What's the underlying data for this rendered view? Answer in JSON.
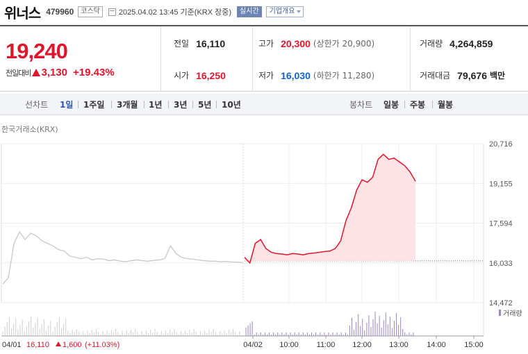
{
  "header": {
    "name": "위너스",
    "code": "479960",
    "market": "코스닥",
    "datetime": "2025.04.02 13:45  기준(KRX 장중)",
    "realtime": "실시간",
    "corp_info": "기업개요"
  },
  "quote": {
    "price": "19,240",
    "change_label": "전일대비",
    "change": "3,130",
    "change_pct": "+19.43%",
    "prev_label": "전일",
    "prev": "16,110",
    "open_label": "시가",
    "open": "16,250",
    "high_label": "고가",
    "high": "20,300",
    "upper_limit": "(상한가 20,900)",
    "low_label": "저가",
    "low": "16,030",
    "lower_limit": "(하한가 11,280)",
    "volume_label": "거래량",
    "volume": "4,264,859",
    "amount_label": "거래대금",
    "amount": "79,676",
    "amount_unit": "백만"
  },
  "tabs": {
    "line_label": "선차트",
    "line": [
      "1일",
      "1주일",
      "3개월",
      "1년",
      "3년",
      "5년",
      "10년"
    ],
    "candle_label": "봉차트",
    "candle": [
      "일봉",
      "주봉",
      "월봉"
    ]
  },
  "source": "한국거래소(KRX)",
  "colors": {
    "up": "#e0142a",
    "down": "#1560c6",
    "volume": "#9b86c9",
    "accent": "#2a55b8"
  },
  "chart_data": {
    "type": "line",
    "y_ticks": [
      "20,716",
      "19,155",
      "17,594",
      "16,033",
      "14,472"
    ],
    "ylim": [
      14472,
      20716
    ],
    "x_ticks": [
      "04/01",
      "04/02",
      "10:00",
      "11:00",
      "12:00",
      "13:00",
      "14:00",
      "15:00"
    ],
    "prev_close": 16110,
    "series": [
      {
        "values": [
          15200,
          15450,
          16800,
          17250,
          16950,
          17200,
          17100,
          16900,
          16800,
          16700,
          16550,
          16500,
          16300,
          16250,
          16200,
          16250,
          16150,
          16200,
          16180,
          16120,
          16150,
          16100,
          16080,
          16120,
          16150,
          16120,
          16100,
          16130,
          16150,
          16200,
          16700,
          16400,
          16250,
          16200,
          16180,
          16150,
          16120,
          16100,
          16100,
          16080,
          16090,
          16070,
          16060,
          16050
        ]
      },
      {
        "values": [
          16250,
          16030,
          16800,
          16950,
          16600,
          16450,
          16400,
          16380,
          16350,
          16400,
          16380,
          16350,
          16400,
          16420,
          16450,
          16480,
          16500,
          16600,
          16900,
          17700,
          18200,
          18900,
          19300,
          19200,
          19400,
          20100,
          20300,
          20100,
          20150,
          20000,
          19850,
          19600,
          19240
        ]
      }
    ],
    "volume_label": "거래량",
    "footer_prev_day": "04/01",
    "footer_prev_close": "16,110",
    "footer_prev_change": "1,600",
    "footer_prev_pct": "(+11.03%)"
  }
}
